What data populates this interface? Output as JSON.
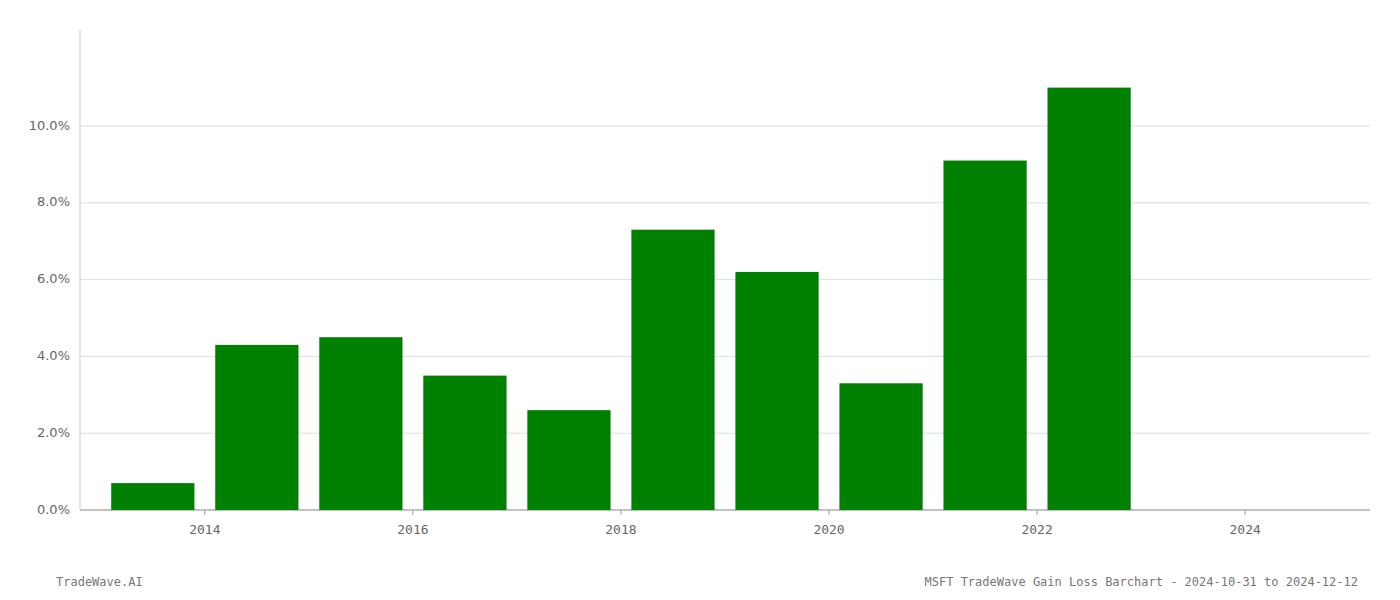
{
  "chart_data": {
    "type": "bar",
    "title": "MSFT TradeWave Gain Loss Barchart - 2024-10-31 to 2024-12-12",
    "annotations": [
      "TradeWave.AI"
    ],
    "x": [
      2013,
      2014,
      2015,
      2016,
      2017,
      2018,
      2019,
      2020,
      2021,
      2022
    ],
    "values": [
      0.007,
      0.043,
      0.045,
      0.035,
      0.026,
      0.073,
      0.062,
      0.033,
      0.091,
      0.11
    ],
    "color": "#008000",
    "xlim": [
      2012.3,
      2024.7
    ],
    "xticks": [
      {
        "value": 2013.5,
        "label": "2014"
      },
      {
        "value": 2015.5,
        "label": "2016"
      },
      {
        "value": 2017.5,
        "label": "2018"
      },
      {
        "value": 2019.5,
        "label": "2020"
      },
      {
        "value": 2021.5,
        "label": "2022"
      },
      {
        "value": 2023.5,
        "label": "2024"
      }
    ],
    "ylim": [
      0,
      0.125
    ],
    "yticks": [
      {
        "value": 0.0,
        "label": "0.0%"
      },
      {
        "value": 0.02,
        "label": "2.0%"
      },
      {
        "value": 0.04,
        "label": "4.0%"
      },
      {
        "value": 0.06,
        "label": "6.0%"
      },
      {
        "value": 0.08,
        "label": "8.0%"
      },
      {
        "value": 0.1,
        "label": "10.0%"
      }
    ],
    "grid": true
  }
}
